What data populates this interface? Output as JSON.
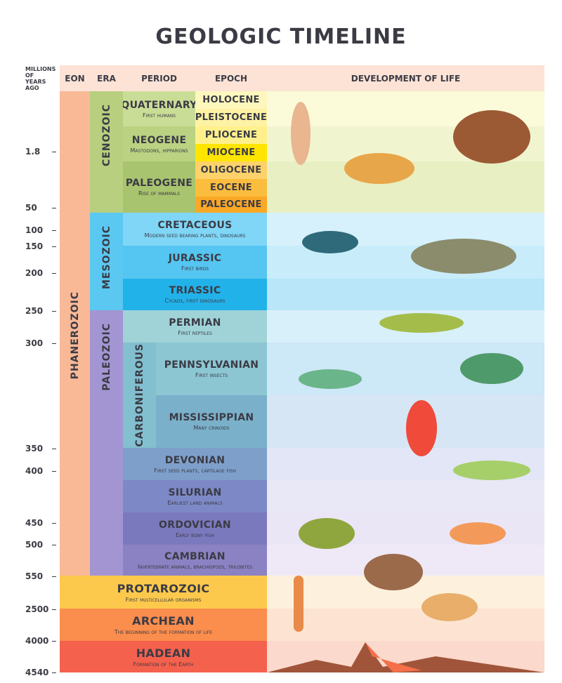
{
  "title": "GEOLOGIC TIMELINE",
  "header": {
    "years": "MILLIONS OF YEARS AGO",
    "eon": "EON",
    "era": "ERA",
    "period": "PERIOD",
    "epoch": "EPOCH",
    "life": "DEVELOPMENT OF LIFE"
  },
  "eons": [
    "PHANEROZOIC"
  ],
  "eras": [
    "CENOZOIC",
    "MESOZOIC",
    "PALEOZOIC"
  ],
  "periods": [
    {
      "name": "QUATERNARY",
      "note": "First humans"
    },
    {
      "name": "NEOGENE",
      "note": "Mastodons, hipparions"
    },
    {
      "name": "PALEOGENE",
      "note": "Rise of mammals"
    },
    {
      "name": "CRETACEOUS",
      "note": "Modern seed bearing plants, dinosaurs"
    },
    {
      "name": "JURASSIC",
      "note": "First birds"
    },
    {
      "name": "TRIASSIC",
      "note": "Cycads, first dinosaurs"
    },
    {
      "name": "PERMIAN",
      "note": "First reptiles"
    },
    {
      "name": "PENNSYLVANIAN",
      "note": "First insects"
    },
    {
      "name": "MISSISSIPPIAN",
      "note": "Many crinoids"
    },
    {
      "name": "DEVONIAN",
      "note": "First seed plants, cartilage fish"
    },
    {
      "name": "SILURIAN",
      "note": "Earliest land animals"
    },
    {
      "name": "ORDOVICIAN",
      "note": "Early bony fish"
    },
    {
      "name": "CAMBRIAN",
      "note": "Invertebrate animals, brachiopods, trilobites"
    }
  ],
  "carboniferous": "CARBONIFEROUS",
  "epochs": [
    "HOLOCENE",
    "PLEISTOCENE",
    "PLIOCENE",
    "MIOCENE",
    "OLIGOCENE",
    "EOCENE",
    "PALEOCENE"
  ],
  "precambrian": [
    {
      "name": "PROTAROZOIC",
      "note": "First multicellular organisms"
    },
    {
      "name": "ARCHEAN",
      "note": "The beginning of the formation of life"
    },
    {
      "name": "HADEAN",
      "note": "Formation of the Earth"
    }
  ],
  "years": [
    "1.8",
    "50",
    "100",
    "150",
    "200",
    "250",
    "300",
    "350",
    "400",
    "450",
    "500",
    "550",
    "2500",
    "4000",
    "4540"
  ]
}
